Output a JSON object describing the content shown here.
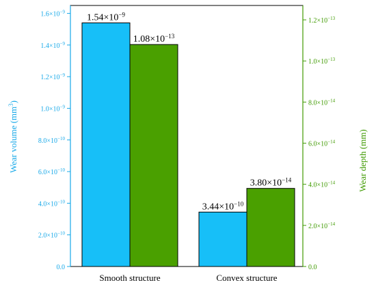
{
  "chart_data": {
    "type": "bar",
    "categories": [
      "Smooth structure",
      "Convex structure"
    ],
    "series": [
      {
        "values": [
          1.54e-09,
          3.44e-10
        ],
        "axis": "left",
        "color": "#17bff8",
        "data_labels": [
          {
            "base": "1.54×10",
            "exp": "−9"
          },
          {
            "base": "3.44×10",
            "exp": "−10"
          }
        ]
      },
      {
        "values": [
          1.08e-13,
          3.8e-14
        ],
        "axis": "right",
        "color": "#4aa000",
        "data_labels": [
          {
            "base": "1.08×10",
            "exp": "−13"
          },
          {
            "base": "3.80×10",
            "exp": "−14"
          }
        ]
      }
    ],
    "ylabel_left": {
      "text": "Wear volume (mm",
      "sup": "3",
      "close": ")"
    },
    "ylabel_right": "Wear depth (mm)",
    "ylim_left": [
      0,
      1.65e-09
    ],
    "ylim_right": [
      0,
      1.27e-13
    ],
    "left_ticks": [
      {
        "value": 0,
        "label": "0.0",
        "exp": ""
      },
      {
        "value": 2e-10,
        "label": "2.0×10",
        "exp": "−10"
      },
      {
        "value": 4e-10,
        "label": "4.0×10",
        "exp": "−10"
      },
      {
        "value": 6e-10,
        "label": "6.0×10",
        "exp": "−10"
      },
      {
        "value": 8e-10,
        "label": "8.0×10",
        "exp": "−10"
      },
      {
        "value": 1e-09,
        "label": "1.0×10",
        "exp": "−9"
      },
      {
        "value": 1.2e-09,
        "label": "1.2×10",
        "exp": "−9"
      },
      {
        "value": 1.4e-09,
        "label": "1.4×10",
        "exp": "−9"
      },
      {
        "value": 1.6e-09,
        "label": "1.6×10",
        "exp": "−9"
      }
    ],
    "right_ticks": [
      {
        "value": 0,
        "label": "0.0",
        "exp": ""
      },
      {
        "value": 2e-14,
        "label": "2.0×10",
        "exp": "−14"
      },
      {
        "value": 4e-14,
        "label": "4.0×10",
        "exp": "−14"
      },
      {
        "value": 6e-14,
        "label": "6.0×10",
        "exp": "−14"
      },
      {
        "value": 8e-14,
        "label": "8.0×10",
        "exp": "−14"
      },
      {
        "value": 1e-13,
        "label": "1.0×10",
        "exp": "−13"
      },
      {
        "value": 1.2e-13,
        "label": "1.2×10",
        "exp": "−13"
      }
    ],
    "left_axis_color": "#16a8e8",
    "right_axis_color": "#3f9a00",
    "grid": false,
    "legend": "none"
  }
}
